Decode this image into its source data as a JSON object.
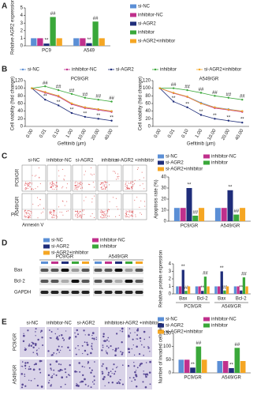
{
  "panel_labels": [
    "A",
    "B",
    "C",
    "D",
    "E"
  ],
  "chart_data": [
    {
      "type": "bar",
      "y_label": "Relative AGR2 expression",
      "categories": [
        "PC9",
        "A549"
      ],
      "ylim": [
        0,
        5
      ],
      "yticks": [
        0,
        1,
        2,
        3,
        4,
        5
      ],
      "series": [
        {
          "name": "si-NC",
          "color": "#5b8fd6",
          "values": [
            1,
            1
          ]
        },
        {
          "name": "inhibitor-NC",
          "color": "#c0308c",
          "values": [
            1,
            1
          ]
        },
        {
          "name": "si-AGR2",
          "color": "#1f2d7a",
          "values": [
            0.3,
            0.35
          ],
          "annotations": [
            "**",
            "**"
          ]
        },
        {
          "name": "inhibitor",
          "color": "#3aa83a",
          "values": [
            3.8,
            3.2
          ],
          "annotations": [
            "##",
            "##"
          ]
        },
        {
          "name": "si-AGR2+inhibitor",
          "color": "#f5a623",
          "values": [
            1,
            1
          ]
        }
      ]
    },
    {
      "type": "line",
      "title": "PC9/GR",
      "y_label": "Cell viability (fold change)",
      "x_label": "Gefitinib (μm)",
      "categories": [
        "0.00",
        "0.01",
        "0.10",
        "1.00",
        "10.00",
        "20.00",
        "40.00"
      ],
      "ylim": [
        0,
        120
      ],
      "yticks": [
        0,
        20,
        40,
        60,
        80,
        100,
        120
      ],
      "series": [
        {
          "name": "si-NC",
          "color": "#5b8fd6",
          "values": [
            100,
            90,
            80,
            60,
            50,
            45,
            40
          ]
        },
        {
          "name": "inhibitor-NC",
          "color": "#c0308c",
          "values": [
            100,
            88,
            78,
            58,
            48,
            43,
            38
          ]
        },
        {
          "name": "si-AGR2",
          "color": "#1f2d7a",
          "values": [
            100,
            70,
            55,
            35,
            25,
            20,
            15
          ],
          "annotations": [
            null,
            "**",
            "**",
            "**",
            "**",
            "**",
            "**"
          ]
        },
        {
          "name": "inhibitor",
          "color": "#3aa83a",
          "values": [
            100,
            105,
            95,
            85,
            75,
            70,
            65
          ],
          "annotations": [
            null,
            "##",
            "##",
            "##",
            "##",
            "##",
            "##"
          ]
        },
        {
          "name": "si-AGR2+inhibitor",
          "color": "#f5a623",
          "values": [
            100,
            90,
            80,
            60,
            50,
            45,
            40
          ]
        }
      ]
    },
    {
      "type": "line",
      "title": "A549/GR",
      "y_label": "Cell viability (fold change)",
      "x_label": "Gefitinib (μm)",
      "categories": [
        "0.00",
        "0.01",
        "0.10",
        "1.00",
        "10.00",
        "20.00",
        "40.00"
      ],
      "ylim": [
        0,
        120
      ],
      "yticks": [
        0,
        20,
        40,
        60,
        80,
        100,
        120
      ],
      "series": [
        {
          "color": "#5b8fd6",
          "values": [
            100,
            88,
            78,
            62,
            50,
            45,
            40
          ]
        },
        {
          "color": "#c0308c",
          "values": [
            100,
            87,
            77,
            60,
            48,
            43,
            38
          ]
        },
        {
          "color": "#1f2d7a",
          "values": [
            100,
            65,
            50,
            30,
            20,
            15,
            10
          ],
          "annotations": [
            null,
            "**",
            "**",
            "**",
            "**",
            "**",
            "**"
          ]
        },
        {
          "color": "#3aa83a",
          "values": [
            100,
            100,
            95,
            88,
            80,
            75,
            70
          ],
          "annotations": [
            null,
            "##",
            "##",
            "##",
            "##",
            "##",
            "##"
          ]
        },
        {
          "color": "#f5a623",
          "values": [
            100,
            88,
            78,
            60,
            50,
            44,
            40
          ]
        }
      ]
    },
    {
      "type": "bar",
      "y_label": "Apoptosis rate (%)",
      "categories": [
        "PC9/GR",
        "A549/GR"
      ],
      "ylim": [
        0,
        40
      ],
      "yticks": [
        0,
        10,
        20,
        30,
        40
      ],
      "series": [
        {
          "name": "si-NC",
          "color": "#5b8fd6",
          "values": [
            12,
            12
          ]
        },
        {
          "name": "inhibitor-NC",
          "color": "#c0308c",
          "values": [
            12,
            12
          ]
        },
        {
          "name": "si-AGR2",
          "color": "#1f2d7a",
          "values": [
            30,
            28
          ],
          "annotations": [
            "**",
            "**"
          ]
        },
        {
          "name": "inhibitor",
          "color": "#3aa83a",
          "values": [
            5,
            6
          ],
          "annotations": [
            "##",
            "##"
          ]
        },
        {
          "name": "si-AGR2+inhibitor",
          "color": "#f5a623",
          "values": [
            12,
            12
          ]
        }
      ]
    },
    {
      "type": "bar",
      "y_label": "Relative protein expression",
      "categories": [
        "Bax",
        "Bcl-2",
        "Bax",
        "Bcl-2"
      ],
      "groups": [
        "PC9/GR",
        "A549/GR"
      ],
      "ylim": [
        0,
        4
      ],
      "yticks": [
        0,
        1,
        2,
        3,
        4
      ],
      "series": [
        {
          "name": "si-NC",
          "color": "#5b8fd6",
          "values": [
            1,
            1,
            1,
            1
          ]
        },
        {
          "name": "inhibitor-NC",
          "color": "#c0308c",
          "values": [
            1,
            1,
            1,
            1
          ]
        },
        {
          "name": "si-AGR2",
          "color": "#1f2d7a",
          "values": [
            3.2,
            0.4,
            3,
            0.45
          ],
          "annotations": [
            "**",
            "**",
            "**",
            "**"
          ]
        },
        {
          "name": "inhibitor",
          "color": "#3aa83a",
          "values": [
            0.4,
            2.3,
            0.45,
            2.2
          ],
          "annotations": [
            "##",
            "##",
            "##",
            "##"
          ]
        },
        {
          "name": "si-AGR2+inhibitor",
          "color": "#f5a623",
          "values": [
            1,
            1,
            1,
            1
          ]
        }
      ]
    },
    {
      "type": "bar",
      "y_label": "Number of invaded cells/field",
      "categories": [
        "PC9/GR",
        "A549/GR"
      ],
      "ylim": [
        0,
        150
      ],
      "yticks": [
        0,
        50,
        100,
        150
      ],
      "series": [
        {
          "name": "si-NC",
          "color": "#5b8fd6",
          "values": [
            50,
            45
          ]
        },
        {
          "name": "inhibitor-NC",
          "color": "#c0308c",
          "values": [
            50,
            45
          ]
        },
        {
          "name": "si-AGR2",
          "color": "#1f2d7a",
          "values": [
            20,
            18
          ],
          "annotations": [
            "**",
            "**"
          ]
        },
        {
          "name": "inhibitor",
          "color": "#3aa83a",
          "values": [
            100,
            95
          ],
          "annotations": [
            "##",
            "##"
          ]
        },
        {
          "name": "si-AGR2+inhibitor",
          "color": "#f5a623",
          "values": [
            50,
            45
          ]
        }
      ]
    }
  ],
  "panel_c": {
    "columns": [
      "si-NC",
      "inhibitor-NC",
      "si-AGR2",
      "inhibitor",
      "si-AGR2 +inhibitor"
    ],
    "rows": [
      "PC9/GR",
      "A549/GR"
    ],
    "y_axis": "PI",
    "x_axis": "Annexin V"
  },
  "panel_d": {
    "cell_lines": [
      "PC9/GR",
      "A549/GR"
    ],
    "proteins": [
      "Bax",
      "Bcl-2",
      "GAPDH"
    ]
  },
  "panel_e": {
    "columns": [
      "si-NC",
      "inhibitor-NC",
      "si-AGR2",
      "inhibitor",
      "si-AGR2 +inhibitor"
    ],
    "rows": [
      "PC9/GR",
      "A549/GR"
    ]
  }
}
